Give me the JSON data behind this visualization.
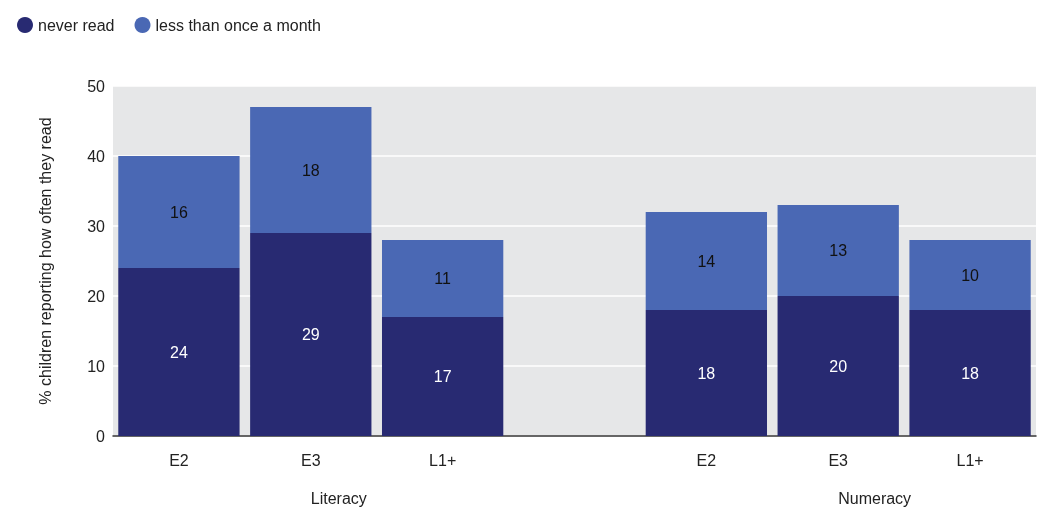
{
  "chart_data": {
    "type": "bar",
    "stacked": true,
    "categories": [
      "E2",
      "E3",
      "L1+",
      null,
      "E2",
      "E3",
      "L1+"
    ],
    "series": [
      {
        "name": "never read",
        "color": "#282a72",
        "values": [
          24,
          29,
          17,
          null,
          18,
          20,
          18
        ]
      },
      {
        "name": "less than once a month",
        "color": "#4a68b4",
        "values": [
          16,
          18,
          11,
          null,
          14,
          13,
          10
        ]
      }
    ],
    "ylabel": "% children reporting how often they read",
    "annotations": [
      "Literacy",
      "Numeracy"
    ],
    "ylim": [
      0,
      50
    ],
    "yticks": [
      0,
      10,
      20,
      30,
      40,
      50
    ],
    "grid": "y",
    "legend": "top left",
    "data_labels": true
  }
}
